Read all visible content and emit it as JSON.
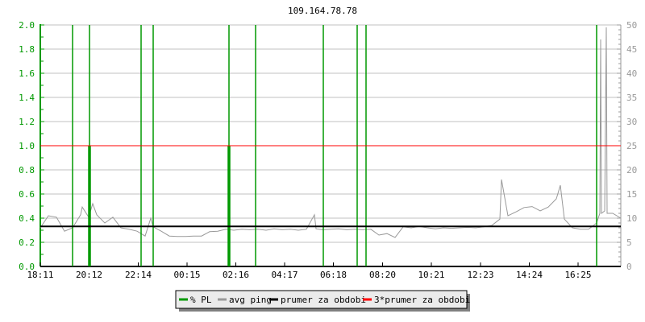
{
  "chart_data": {
    "type": "line",
    "title": "109.164.78.78",
    "xlim": [
      "18:11",
      "18:11"
    ],
    "x_tick_labels": [
      "18:11",
      "20:12",
      "22:14",
      "00:15",
      "02:16",
      "04:17",
      "06:18",
      "08:20",
      "10:21",
      "12:23",
      "14:24",
      "16:25"
    ],
    "y_left": {
      "range": [
        0,
        2.0
      ],
      "tick_labels": [
        "0.0",
        "0.2",
        "0.4",
        "0.6",
        "0.8",
        "1.0",
        "1.2",
        "1.4",
        "1.6",
        "1.8",
        "2.0"
      ],
      "color": "#009900"
    },
    "y_right": {
      "range": [
        0,
        50
      ],
      "tick_labels": [
        "0",
        "5",
        "10",
        "15",
        "20",
        "25",
        "30",
        "35",
        "40",
        "45",
        "50"
      ],
      "color": "#999999"
    },
    "grid": true,
    "legend_position": "bottom",
    "series": [
      {
        "name": "% PL",
        "color": "#009900",
        "axis": "left",
        "points": [
          {
            "t": "19:31",
            "v": 2.0
          },
          {
            "t": "20:11",
            "v": 1.0
          },
          {
            "t": "20:13",
            "v": 2.0
          },
          {
            "t": "20:15",
            "v": 1.0
          },
          {
            "t": "22:21",
            "v": 2.0
          },
          {
            "t": "22:51",
            "v": 2.0
          },
          {
            "t": "01:57",
            "v": 1.0
          },
          {
            "t": "01:59",
            "v": 2.0
          },
          {
            "t": "02:01",
            "v": 1.0
          },
          {
            "t": "03:05",
            "v": 2.0
          },
          {
            "t": "05:53",
            "v": 2.0
          },
          {
            "t": "07:17",
            "v": 2.0
          },
          {
            "t": "07:39",
            "v": 2.0
          },
          {
            "t": "17:11",
            "v": 2.0
          }
        ]
      },
      {
        "name": "avg ping",
        "color": "#999999",
        "axis": "right",
        "points": [
          {
            "t": "18:11",
            "v": 8.0
          },
          {
            "t": "18:31",
            "v": 10.5
          },
          {
            "t": "18:51",
            "v": 10.2
          },
          {
            "t": "19:11",
            "v": 7.3
          },
          {
            "t": "19:31",
            "v": 8.0
          },
          {
            "t": "19:51",
            "v": 10.7
          },
          {
            "t": "19:55",
            "v": 12.3
          },
          {
            "t": "20:11",
            "v": 10.2
          },
          {
            "t": "20:21",
            "v": 13.0
          },
          {
            "t": "20:31",
            "v": 10.7
          },
          {
            "t": "20:51",
            "v": 9.0
          },
          {
            "t": "21:11",
            "v": 10.2
          },
          {
            "t": "21:31",
            "v": 8.0
          },
          {
            "t": "21:51",
            "v": 7.7
          },
          {
            "t": "22:11",
            "v": 7.3
          },
          {
            "t": "22:31",
            "v": 6.3
          },
          {
            "t": "22:45",
            "v": 10.0
          },
          {
            "t": "22:51",
            "v": 8.2
          },
          {
            "t": "23:11",
            "v": 7.3
          },
          {
            "t": "23:31",
            "v": 6.3
          },
          {
            "t": "23:51",
            "v": 6.2
          },
          {
            "t": "00:11",
            "v": 6.2
          },
          {
            "t": "00:31",
            "v": 6.3
          },
          {
            "t": "00:51",
            "v": 6.3
          },
          {
            "t": "01:11",
            "v": 7.2
          },
          {
            "t": "01:31",
            "v": 7.3
          },
          {
            "t": "01:51",
            "v": 7.7
          },
          {
            "t": "02:11",
            "v": 7.5
          },
          {
            "t": "02:31",
            "v": 7.7
          },
          {
            "t": "02:51",
            "v": 7.6
          },
          {
            "t": "03:11",
            "v": 7.7
          },
          {
            "t": "03:31",
            "v": 7.5
          },
          {
            "t": "03:51",
            "v": 7.8
          },
          {
            "t": "04:11",
            "v": 7.6
          },
          {
            "t": "04:31",
            "v": 7.7
          },
          {
            "t": "04:51",
            "v": 7.5
          },
          {
            "t": "05:11",
            "v": 7.7
          },
          {
            "t": "05:31",
            "v": 10.7
          },
          {
            "t": "05:35",
            "v": 7.8
          },
          {
            "t": "05:51",
            "v": 7.6
          },
          {
            "t": "06:11",
            "v": 7.7
          },
          {
            "t": "06:31",
            "v": 7.8
          },
          {
            "t": "06:51",
            "v": 7.6
          },
          {
            "t": "07:11",
            "v": 7.7
          },
          {
            "t": "07:31",
            "v": 7.6
          },
          {
            "t": "07:51",
            "v": 7.7
          },
          {
            "t": "08:11",
            "v": 6.5
          },
          {
            "t": "08:31",
            "v": 6.8
          },
          {
            "t": "08:51",
            "v": 6.0
          },
          {
            "t": "09:11",
            "v": 8.2
          },
          {
            "t": "09:31",
            "v": 8.0
          },
          {
            "t": "09:51",
            "v": 8.3
          },
          {
            "t": "10:11",
            "v": 8.0
          },
          {
            "t": "10:31",
            "v": 7.8
          },
          {
            "t": "10:51",
            "v": 8.0
          },
          {
            "t": "11:11",
            "v": 7.9
          },
          {
            "t": "11:31",
            "v": 8.0
          },
          {
            "t": "11:51",
            "v": 8.1
          },
          {
            "t": "12:11",
            "v": 8.0
          },
          {
            "t": "12:31",
            "v": 8.2
          },
          {
            "t": "12:51",
            "v": 8.5
          },
          {
            "t": "13:11",
            "v": 9.8
          },
          {
            "t": "13:15",
            "v": 18.0
          },
          {
            "t": "13:31",
            "v": 10.5
          },
          {
            "t": "13:51",
            "v": 11.3
          },
          {
            "t": "14:11",
            "v": 12.2
          },
          {
            "t": "14:31",
            "v": 12.4
          },
          {
            "t": "14:51",
            "v": 11.5
          },
          {
            "t": "15:11",
            "v": 12.3
          },
          {
            "t": "15:31",
            "v": 14.0
          },
          {
            "t": "15:41",
            "v": 16.8
          },
          {
            "t": "15:51",
            "v": 9.8
          },
          {
            "t": "16:11",
            "v": 8.0
          },
          {
            "t": "16:31",
            "v": 7.7
          },
          {
            "t": "16:51",
            "v": 7.7
          },
          {
            "t": "17:11",
            "v": 9.0
          },
          {
            "t": "17:19",
            "v": 11.0
          },
          {
            "t": "17:21",
            "v": 47.0
          },
          {
            "t": "17:23",
            "v": 11.0
          },
          {
            "t": "17:31",
            "v": 11.5
          },
          {
            "t": "17:35",
            "v": 49.5
          },
          {
            "t": "17:37",
            "v": 11.0
          },
          {
            "t": "17:51",
            "v": 11.0
          },
          {
            "t": "18:11",
            "v": 10.0
          }
        ]
      },
      {
        "name": "prumer za obdobi",
        "color": "#000000",
        "axis": "right",
        "value": 8.3
      },
      {
        "name": "3*prumer za obdobi",
        "color": "#ff0000",
        "axis": "right",
        "value": 25.0
      }
    ]
  }
}
